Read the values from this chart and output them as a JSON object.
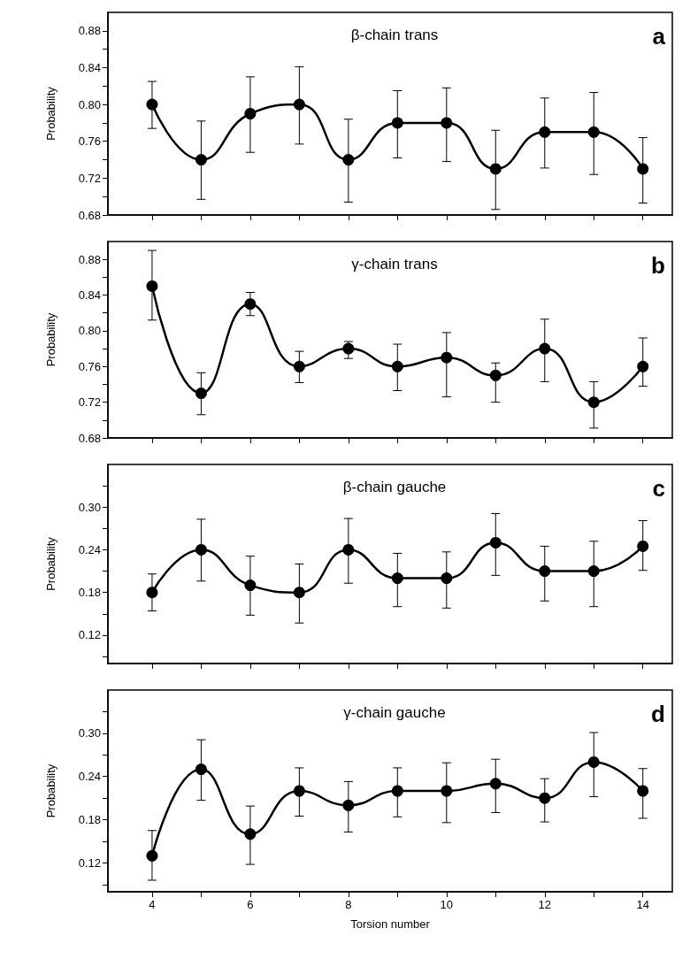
{
  "chart_data": [
    {
      "type": "line",
      "title": "β-chain trans",
      "ylabel": "Probability",
      "annotations": [
        "a"
      ],
      "tick_labels": "y",
      "marker": "circle",
      "line_style": "solid",
      "x": [
        4,
        5,
        6,
        7,
        8,
        9,
        10,
        11,
        12,
        13,
        14
      ],
      "series": [
        {
          "color": "#000000",
          "values": [
            0.8,
            0.74,
            0.79,
            0.8,
            0.74,
            0.78,
            0.78,
            0.73,
            0.77,
            0.77,
            0.73
          ],
          "errors": [
            [
              0.774,
              0.825
            ],
            [
              0.697,
              0.782
            ],
            [
              0.748,
              0.83
            ],
            [
              0.757,
              0.841
            ],
            [
              0.694,
              0.784
            ],
            [
              0.742,
              0.815
            ],
            [
              0.738,
              0.818
            ],
            [
              0.686,
              0.772
            ],
            [
              0.731,
              0.807
            ],
            [
              0.724,
              0.813
            ],
            [
              0.693,
              0.764
            ]
          ]
        }
      ],
      "xlim": [
        3.1,
        14.6
      ],
      "xticks": [
        {
          "value": 4,
          "label": null
        },
        {
          "value": 5,
          "label": null
        },
        {
          "value": 6,
          "label": null
        },
        {
          "value": 7,
          "label": null
        },
        {
          "value": 8,
          "label": null
        },
        {
          "value": 9,
          "label": null
        },
        {
          "value": 10,
          "label": null
        },
        {
          "value": 11,
          "label": null
        },
        {
          "value": 12,
          "label": null
        },
        {
          "value": 13,
          "label": null
        },
        {
          "value": 14,
          "label": null
        }
      ],
      "ylim": [
        0.68,
        0.9
      ],
      "yticks": [
        {
          "value": 0.68,
          "label": "0.68"
        },
        {
          "value": 0.7,
          "label": null
        },
        {
          "value": 0.72,
          "label": "0.72"
        },
        {
          "value": 0.74,
          "label": null
        },
        {
          "value": 0.76,
          "label": "0.76"
        },
        {
          "value": 0.78,
          "label": null
        },
        {
          "value": 0.8,
          "label": "0.80"
        },
        {
          "value": 0.82,
          "label": null
        },
        {
          "value": 0.84,
          "label": "0.84"
        },
        {
          "value": 0.86,
          "label": null
        },
        {
          "value": 0.88,
          "label": "0.88"
        }
      ]
    },
    {
      "type": "line",
      "title": "γ-chain trans",
      "ylabel": "Probability",
      "annotations": [
        "b"
      ],
      "tick_labels": "y",
      "marker": "circle",
      "line_style": "solid",
      "x": [
        4,
        5,
        6,
        7,
        8,
        9,
        10,
        11,
        12,
        13,
        14
      ],
      "series": [
        {
          "color": "#000000",
          "values": [
            0.85,
            0.73,
            0.83,
            0.76,
            0.78,
            0.76,
            0.77,
            0.75,
            0.78,
            0.72,
            0.76
          ],
          "errors": [
            [
              0.812,
              0.89
            ],
            [
              0.706,
              0.753
            ],
            [
              0.817,
              0.843
            ],
            [
              0.742,
              0.777
            ],
            [
              0.769,
              0.788
            ],
            [
              0.733,
              0.785
            ],
            [
              0.726,
              0.798
            ],
            [
              0.72,
              0.764
            ],
            [
              0.743,
              0.813
            ],
            [
              0.691,
              0.743
            ],
            [
              0.738,
              0.792
            ]
          ]
        }
      ],
      "xlim": [
        3.1,
        14.6
      ],
      "xticks": [
        {
          "value": 4,
          "label": null
        },
        {
          "value": 5,
          "label": null
        },
        {
          "value": 6,
          "label": null
        },
        {
          "value": 7,
          "label": null
        },
        {
          "value": 8,
          "label": null
        },
        {
          "value": 9,
          "label": null
        },
        {
          "value": 10,
          "label": null
        },
        {
          "value": 11,
          "label": null
        },
        {
          "value": 12,
          "label": null
        },
        {
          "value": 13,
          "label": null
        },
        {
          "value": 14,
          "label": null
        }
      ],
      "ylim": [
        0.68,
        0.9
      ],
      "yticks": [
        {
          "value": 0.68,
          "label": "0.68"
        },
        {
          "value": 0.7,
          "label": null
        },
        {
          "value": 0.72,
          "label": "0.72"
        },
        {
          "value": 0.74,
          "label": null
        },
        {
          "value": 0.76,
          "label": "0.76"
        },
        {
          "value": 0.78,
          "label": null
        },
        {
          "value": 0.8,
          "label": "0.80"
        },
        {
          "value": 0.82,
          "label": null
        },
        {
          "value": 0.84,
          "label": "0.84"
        },
        {
          "value": 0.86,
          "label": null
        },
        {
          "value": 0.88,
          "label": "0.88"
        }
      ]
    },
    {
      "type": "line",
      "title": "β-chain gauche",
      "ylabel": "Probability",
      "annotations": [
        "c"
      ],
      "tick_labels": "y",
      "marker": "circle",
      "line_style": "solid",
      "x": [
        4,
        5,
        6,
        7,
        8,
        9,
        10,
        11,
        12,
        13,
        14
      ],
      "series": [
        {
          "color": "#000000",
          "values": [
            0.18,
            0.24,
            0.19,
            0.18,
            0.24,
            0.2,
            0.2,
            0.25,
            0.21,
            0.21,
            0.245
          ],
          "errors": [
            [
              0.154,
              0.206
            ],
            [
              0.196,
              0.283
            ],
            [
              0.148,
              0.231
            ],
            [
              0.137,
              0.22
            ],
            [
              0.193,
              0.284
            ],
            [
              0.16,
              0.235
            ],
            [
              0.158,
              0.237
            ],
            [
              0.204,
              0.291
            ],
            [
              0.168,
              0.245
            ],
            [
              0.16,
              0.252
            ],
            [
              0.211,
              0.281
            ]
          ]
        }
      ],
      "xlim": [
        3.1,
        14.6
      ],
      "xticks": [
        {
          "value": 4,
          "label": null
        },
        {
          "value": 5,
          "label": null
        },
        {
          "value": 6,
          "label": null
        },
        {
          "value": 7,
          "label": null
        },
        {
          "value": 8,
          "label": null
        },
        {
          "value": 9,
          "label": null
        },
        {
          "value": 10,
          "label": null
        },
        {
          "value": 11,
          "label": null
        },
        {
          "value": 12,
          "label": null
        },
        {
          "value": 13,
          "label": null
        },
        {
          "value": 14,
          "label": null
        }
      ],
      "ylim": [
        0.08,
        0.36
      ],
      "yticks": [
        {
          "value": 0.09,
          "label": null
        },
        {
          "value": 0.12,
          "label": "0.12"
        },
        {
          "value": 0.15,
          "label": null
        },
        {
          "value": 0.18,
          "label": "0.18"
        },
        {
          "value": 0.21,
          "label": null
        },
        {
          "value": 0.24,
          "label": "0.24"
        },
        {
          "value": 0.27,
          "label": null
        },
        {
          "value": 0.3,
          "label": "0.30"
        },
        {
          "value": 0.33,
          "label": null
        }
      ]
    },
    {
      "type": "line",
      "title": "γ-chain gauche",
      "ylabel": "Probability",
      "xlabel": "Torsion number",
      "annotations": [
        "d"
      ],
      "marker": "circle",
      "line_style": "solid",
      "x": [
        4,
        5,
        6,
        7,
        8,
        9,
        10,
        11,
        12,
        13,
        14
      ],
      "series": [
        {
          "color": "#000000",
          "values": [
            0.13,
            0.25,
            0.16,
            0.22,
            0.2,
            0.22,
            0.22,
            0.23,
            0.21,
            0.26,
            0.22
          ],
          "errors": [
            [
              0.096,
              0.165
            ],
            [
              0.207,
              0.291
            ],
            [
              0.118,
              0.199
            ],
            [
              0.185,
              0.252
            ],
            [
              0.163,
              0.233
            ],
            [
              0.184,
              0.252
            ],
            [
              0.176,
              0.259
            ],
            [
              0.19,
              0.264
            ],
            [
              0.177,
              0.237
            ],
            [
              0.212,
              0.301
            ],
            [
              0.182,
              0.251
            ]
          ]
        }
      ],
      "xlim": [
        3.1,
        14.6
      ],
      "xticks": [
        {
          "value": 4,
          "label": "4"
        },
        {
          "value": 5,
          "label": null
        },
        {
          "value": 6,
          "label": "6"
        },
        {
          "value": 7,
          "label": null
        },
        {
          "value": 8,
          "label": "8"
        },
        {
          "value": 9,
          "label": null
        },
        {
          "value": 10,
          "label": "10"
        },
        {
          "value": 11,
          "label": null
        },
        {
          "value": 12,
          "label": "12"
        },
        {
          "value": 13,
          "label": null
        },
        {
          "value": 14,
          "label": "14"
        }
      ],
      "ylim": [
        0.08,
        0.36
      ],
      "yticks": [
        {
          "value": 0.09,
          "label": null
        },
        {
          "value": 0.12,
          "label": "0.12"
        },
        {
          "value": 0.15,
          "label": null
        },
        {
          "value": 0.18,
          "label": "0.18"
        },
        {
          "value": 0.21,
          "label": null
        },
        {
          "value": 0.24,
          "label": "0.24"
        },
        {
          "value": 0.27,
          "label": null
        },
        {
          "value": 0.3,
          "label": "0.30"
        },
        {
          "value": 0.33,
          "label": null
        }
      ]
    }
  ]
}
